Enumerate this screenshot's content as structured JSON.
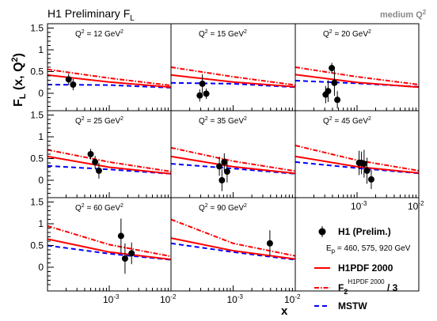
{
  "figure": {
    "title": "H1 Preliminary F",
    "title_sub": "L",
    "tag": "medium Q",
    "tag_sup": "2",
    "ylabel": "F",
    "ylabel_sub": "L",
    "ylabel_rest": " (x, Q",
    "ylabel_sup": "2",
    "ylabel_close": ")",
    "xlabel": "x"
  },
  "legend": {
    "data_label": "H1 (Prelim.)",
    "beam_label": "E",
    "beam_sub": "p",
    "beam_values": " = 460, 575, 920 GeV",
    "h1pdf_label": "H1PDF 2000",
    "f2_label": "F",
    "f2_sub": "2",
    "f2_sup": "H1PDF 2000",
    "f2_suffix": " / 3",
    "mstw_label": "MSTW"
  },
  "colors": {
    "h1pdf": "#ff0000",
    "f2": "#ff0000",
    "mstw": "#0000ff",
    "data": "#000000"
  },
  "chart_data": {
    "type": "scatter",
    "x_scale": "log",
    "xlim": [
      0.0001,
      0.01
    ],
    "ylim": [
      -0.4,
      1.6
    ],
    "yticks": [
      0,
      0.5,
      1,
      1.5
    ],
    "ytick_labels": [
      "0",
      "0.5",
      "1",
      "1.5"
    ],
    "xtick_labels": [
      "10",
      "-3",
      "10",
      "-2"
    ],
    "panels": [
      {
        "q2_label": "Q",
        "q2_sup": "2",
        "q2_value": " = 12 GeV",
        "q2_unit_sup": "2",
        "points": [
          {
            "x": 0.00022,
            "y": 0.32,
            "err": 0.13
          },
          {
            "x": 0.00026,
            "y": 0.2,
            "err": 0.13
          }
        ],
        "h1pdf": [
          [
            0.0001,
            0.42
          ],
          [
            0.001,
            0.26
          ],
          [
            0.01,
            0.14
          ]
        ],
        "f2": [
          [
            0.0001,
            0.55
          ],
          [
            0.001,
            0.35
          ],
          [
            0.01,
            0.18
          ]
        ],
        "mstw": [
          [
            0.0001,
            0.2
          ],
          [
            0.001,
            0.19
          ],
          [
            0.01,
            0.13
          ]
        ]
      },
      {
        "q2_label": "Q",
        "q2_sup": "2",
        "q2_value": " = 15 GeV",
        "q2_unit_sup": "2",
        "points": [
          {
            "x": 0.00029,
            "y": -0.05,
            "err": 0.14
          },
          {
            "x": 0.00032,
            "y": 0.22,
            "err": 0.22
          },
          {
            "x": 0.00037,
            "y": -0.01,
            "err": 0.12
          }
        ],
        "h1pdf": [
          [
            0.0001,
            0.42
          ],
          [
            0.001,
            0.26
          ],
          [
            0.01,
            0.15
          ]
        ],
        "f2": [
          [
            0.0001,
            0.6
          ],
          [
            0.001,
            0.38
          ],
          [
            0.01,
            0.19
          ]
        ],
        "mstw": [
          [
            0.0001,
            0.24
          ],
          [
            0.001,
            0.22
          ],
          [
            0.01,
            0.14
          ]
        ]
      },
      {
        "q2_label": "Q",
        "q2_sup": "2",
        "q2_value": " = 20 GeV",
        "q2_unit_sup": "2",
        "points": [
          {
            "x": 0.00031,
            "y": -0.03,
            "err": 0.2
          },
          {
            "x": 0.00034,
            "y": 0.05,
            "err": 0.25
          },
          {
            "x": 0.00039,
            "y": 0.58,
            "err": 0.12
          },
          {
            "x": 0.00043,
            "y": 0.24,
            "err": 0.3
          },
          {
            "x": 0.00048,
            "y": -0.15,
            "err": 0.2
          }
        ],
        "h1pdf": [
          [
            0.0001,
            0.43
          ],
          [
            0.001,
            0.25
          ],
          [
            0.01,
            0.14
          ]
        ],
        "f2": [
          [
            0.0001,
            0.6
          ],
          [
            0.001,
            0.38
          ],
          [
            0.01,
            0.2
          ]
        ],
        "mstw": [
          [
            0.0001,
            0.29
          ],
          [
            0.001,
            0.23
          ],
          [
            0.01,
            0.15
          ]
        ]
      },
      {
        "q2_label": "Q",
        "q2_sup": "2",
        "q2_value": " = 25 GeV",
        "q2_unit_sup": "2",
        "points": [
          {
            "x": 0.0005,
            "y": 0.6,
            "err": 0.12
          },
          {
            "x": 0.00059,
            "y": 0.42,
            "err": 0.14
          },
          {
            "x": 0.00068,
            "y": 0.22,
            "err": 0.18
          }
        ],
        "h1pdf": [
          [
            0.0001,
            0.55
          ],
          [
            0.001,
            0.3
          ],
          [
            0.01,
            0.15
          ]
        ],
        "f2": [
          [
            0.0001,
            0.7
          ],
          [
            0.001,
            0.42
          ],
          [
            0.01,
            0.2
          ]
        ],
        "mstw": [
          [
            0.0001,
            0.33
          ],
          [
            0.001,
            0.25
          ],
          [
            0.01,
            0.15
          ]
        ]
      },
      {
        "q2_label": "Q",
        "q2_sup": "2",
        "q2_value": " = 35 GeV",
        "q2_unit_sup": "2",
        "points": [
          {
            "x": 0.0006,
            "y": 0.32,
            "err": 0.22
          },
          {
            "x": 0.00066,
            "y": 0.0,
            "err": 0.25
          },
          {
            "x": 0.00072,
            "y": 0.42,
            "err": 0.2
          },
          {
            "x": 0.0008,
            "y": 0.2,
            "err": 0.25
          }
        ],
        "h1pdf": [
          [
            0.0001,
            0.55
          ],
          [
            0.001,
            0.31
          ],
          [
            0.01,
            0.16
          ]
        ],
        "f2": [
          [
            0.0001,
            0.75
          ],
          [
            0.001,
            0.44
          ],
          [
            0.01,
            0.21
          ]
        ],
        "mstw": [
          [
            0.0001,
            0.38
          ],
          [
            0.001,
            0.27
          ],
          [
            0.01,
            0.15
          ]
        ]
      },
      {
        "q2_label": "Q",
        "q2_sup": "2",
        "q2_value": " = 45 GeV",
        "q2_unit_sup": "2",
        "points": [
          {
            "x": 0.00108,
            "y": 0.4,
            "err": 0.28
          },
          {
            "x": 0.00118,
            "y": 0.4,
            "err": 0.26
          },
          {
            "x": 0.0013,
            "y": 0.38,
            "err": 0.32
          },
          {
            "x": 0.00145,
            "y": 0.22,
            "err": 0.3
          },
          {
            "x": 0.0017,
            "y": 0.02,
            "err": 0.22
          }
        ],
        "h1pdf": [
          [
            0.0001,
            0.55
          ],
          [
            0.001,
            0.31
          ],
          [
            0.01,
            0.17
          ]
        ],
        "f2": [
          [
            0.0001,
            0.8
          ],
          [
            0.001,
            0.46
          ],
          [
            0.01,
            0.22
          ]
        ],
        "mstw": [
          [
            0.0001,
            0.42
          ],
          [
            0.001,
            0.28
          ],
          [
            0.01,
            0.16
          ]
        ]
      },
      {
        "q2_label": "Q",
        "q2_sup": "2",
        "q2_value": " = 60 GeV",
        "q2_unit_sup": "2",
        "points": [
          {
            "x": 0.00155,
            "y": 0.72,
            "err": 0.4
          },
          {
            "x": 0.0018,
            "y": 0.2,
            "err": 0.35
          },
          {
            "x": 0.0023,
            "y": 0.32,
            "err": 0.25
          }
        ],
        "h1pdf": [
          [
            0.0001,
            0.65
          ],
          [
            0.001,
            0.35
          ],
          [
            0.01,
            0.18
          ]
        ],
        "f2": [
          [
            0.0001,
            0.95
          ],
          [
            0.001,
            0.52
          ],
          [
            0.01,
            0.25
          ]
        ],
        "mstw": [
          [
            0.0001,
            0.5
          ],
          [
            0.001,
            0.31
          ],
          [
            0.01,
            0.17
          ]
        ]
      },
      {
        "q2_label": "Q",
        "q2_sup": "2",
        "q2_value": " = 90 GeV",
        "q2_unit_sup": "2",
        "points": [
          {
            "x": 0.0039,
            "y": 0.55,
            "err": 0.3
          }
        ],
        "h1pdf": [
          [
            0.0001,
            0.67
          ],
          [
            0.001,
            0.38
          ],
          [
            0.01,
            0.19
          ]
        ],
        "f2": [
          [
            0.0001,
            1.1
          ],
          [
            0.001,
            0.55
          ],
          [
            0.01,
            0.26
          ]
        ],
        "mstw": [
          [
            0.0001,
            0.55
          ],
          [
            0.001,
            0.35
          ],
          [
            0.01,
            0.17
          ]
        ]
      }
    ]
  }
}
